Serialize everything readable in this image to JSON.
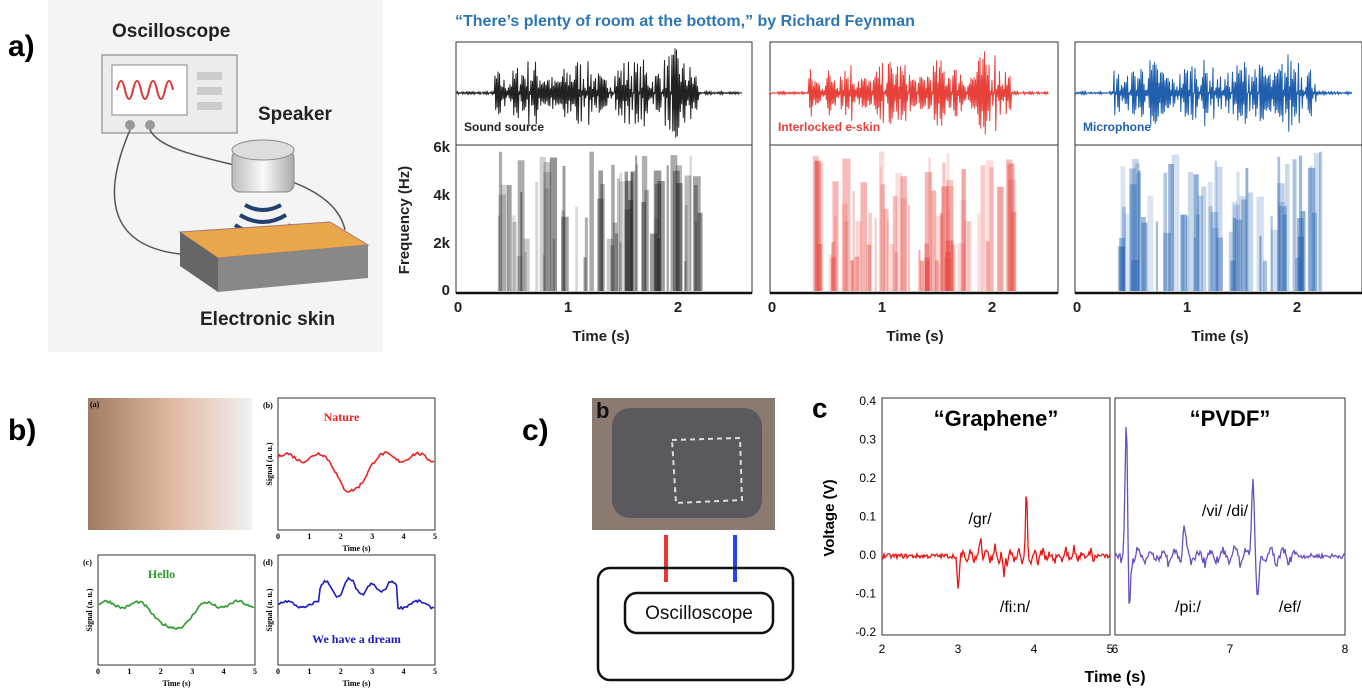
{
  "panels": {
    "a": {
      "label": "a)",
      "diagram": {
        "oscilloscope": "Oscilloscope",
        "speaker": "Speaker",
        "skin": "Electronic skin"
      },
      "title": "“There’s plenty of room at the bottom,” by Richard Feynman",
      "ylabel": "Frequency (Hz)",
      "yticks": [
        "6k",
        "4k",
        "2k",
        "0"
      ],
      "plots": [
        {
          "name": "Sound source",
          "xlabel": "Time (s)",
          "xticks": [
            "0",
            "1",
            "2"
          ]
        },
        {
          "name": "Interlocked e-skin",
          "xlabel": "Time (s)",
          "xticks": [
            "0",
            "1",
            "2"
          ]
        },
        {
          "name": "Microphone",
          "xlabel": "Time (s)",
          "xticks": [
            "0",
            "1",
            "2"
          ]
        }
      ]
    },
    "b": {
      "label": "b)",
      "subpanels": [
        {
          "tag": "(a)"
        },
        {
          "tag": "(b)",
          "word": "Nature",
          "ylabel": "Signal (a. u.)",
          "xlabel": "Time (s)",
          "xticks": [
            "0",
            "1",
            "2",
            "3",
            "4",
            "5"
          ]
        },
        {
          "tag": "(c)",
          "word": "Hello",
          "ylabel": "Signal (a. u.)",
          "xlabel": "Time (s)",
          "xticks": [
            "0",
            "1",
            "2",
            "3",
            "4",
            "5"
          ]
        },
        {
          "tag": "(d)",
          "word": "We have a dream",
          "ylabel": "Signal (a. u.)",
          "xlabel": "Time (s)",
          "xticks": [
            "0",
            "1",
            "2",
            "3",
            "4",
            "5"
          ]
        }
      ]
    },
    "c": {
      "label": "c)",
      "tag": "b",
      "box": "Oscilloscope"
    },
    "voltage": {
      "tag": "c",
      "ylabel": "Voltage (V)",
      "xlabel": "Time (s)",
      "yticks": [
        "0.4",
        "0.3",
        "0.2",
        "0.1",
        "0.0",
        "-0.1",
        "-0.2"
      ],
      "left": {
        "title": "“Graphene”",
        "xticks": [
          "2",
          "3",
          "4",
          "5"
        ],
        "annotations": [
          "/gr/",
          "/fi:n/"
        ]
      },
      "right": {
        "title": "“PVDF”",
        "xticks": [
          "6",
          "7",
          "8"
        ],
        "annotations": [
          "/vi/ /di/",
          "/pi:/",
          "/ef/"
        ]
      }
    }
  }
}
